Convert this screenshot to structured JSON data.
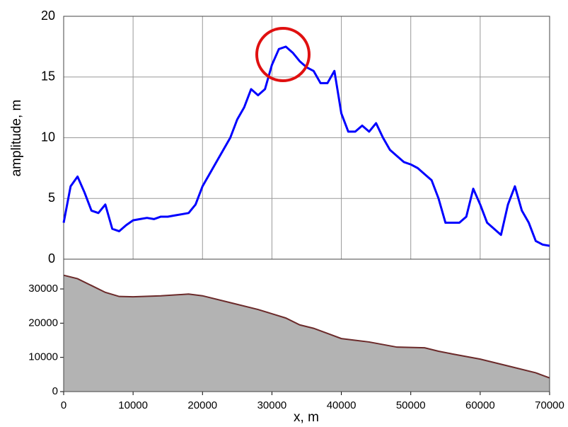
{
  "chart_data": [
    {
      "type": "line",
      "ylabel": "amplitude, m",
      "color": "#0000ff",
      "grid": true,
      "show_xtick_labels": false,
      "xlim": [
        0,
        70000
      ],
      "xticks": [
        0,
        10000,
        20000,
        30000,
        40000,
        50000,
        60000,
        70000
      ],
      "ylim": [
        0,
        20
      ],
      "yticks": [
        0,
        5,
        10,
        15,
        20
      ],
      "x": [
        0,
        1000,
        2000,
        3000,
        4000,
        5000,
        6000,
        7000,
        8000,
        9000,
        10000,
        11000,
        12000,
        13000,
        14000,
        15000,
        16000,
        17000,
        18000,
        19000,
        20000,
        21000,
        22000,
        23000,
        24000,
        25000,
        26000,
        27000,
        28000,
        29000,
        30000,
        31000,
        32000,
        33000,
        34000,
        35000,
        36000,
        37000,
        38000,
        39000,
        40000,
        41000,
        42000,
        43000,
        44000,
        45000,
        46000,
        47000,
        48000,
        49000,
        50000,
        51000,
        52000,
        53000,
        54000,
        55000,
        56000,
        57000,
        58000,
        59000,
        60000,
        61000,
        62000,
        63000,
        64000,
        65000,
        66000,
        67000,
        68000,
        69000,
        70000
      ],
      "values": [
        3,
        6,
        6.8,
        5.5,
        4,
        3.8,
        4.5,
        2.5,
        2.3,
        2.8,
        3.2,
        3.3,
        3.4,
        3.3,
        3.5,
        3.5,
        3.6,
        3.7,
        3.8,
        4.5,
        6,
        7,
        8,
        9,
        10,
        11.5,
        12.5,
        14,
        13.5,
        14,
        16,
        17.3,
        17.5,
        17,
        16.3,
        15.8,
        15.5,
        14.5,
        14.5,
        15.5,
        12,
        10.5,
        10.5,
        11,
        10.5,
        11.2,
        10,
        9,
        8.5,
        8,
        7.8,
        7.5,
        7,
        6.5,
        5,
        3,
        3,
        3,
        3.5,
        5.8,
        4.5,
        3,
        2.5,
        2,
        4.5,
        6,
        4,
        3,
        1.5,
        1.2,
        1.1
      ]
    },
    {
      "type": "area",
      "xlabel": "x, m",
      "color": "#b3b3b3",
      "edge_color": "#6b2a2a",
      "xlim": [
        0,
        70000
      ],
      "xticks": [
        0,
        10000,
        20000,
        30000,
        40000,
        50000,
        60000,
        70000
      ],
      "ylim": [
        0,
        38700
      ],
      "yticks": [
        0,
        10000,
        20000,
        30000
      ],
      "x": [
        0,
        2000,
        4000,
        6000,
        8000,
        10000,
        14000,
        18000,
        20000,
        24000,
        28000,
        32000,
        34000,
        36000,
        38000,
        40000,
        44000,
        48000,
        52000,
        54000,
        56000,
        60000,
        64000,
        68000,
        70000
      ],
      "values": [
        34000,
        33000,
        31000,
        29000,
        27800,
        27700,
        28000,
        28500,
        28000,
        26000,
        24000,
        21500,
        19500,
        18500,
        17000,
        15500,
        14500,
        13000,
        12800,
        11800,
        11000,
        9500,
        7500,
        5500,
        4000
      ]
    }
  ]
}
